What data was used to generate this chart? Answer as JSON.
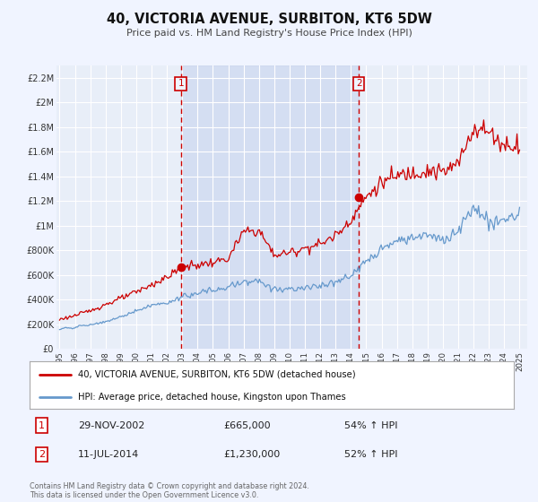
{
  "title": "40, VICTORIA AVENUE, SURBITON, KT6 5DW",
  "subtitle": "Price paid vs. HM Land Registry's House Price Index (HPI)",
  "background_color": "#f0f4ff",
  "plot_bg_color": "#e8eef8",
  "grid_color": "#ffffff",
  "red_line_label": "40, VICTORIA AVENUE, SURBITON, KT6 5DW (detached house)",
  "blue_line_label": "HPI: Average price, detached house, Kingston upon Thames",
  "marker1_date_x": 2002.91,
  "marker1_date_label": "29-NOV-2002",
  "marker1_price": 665000,
  "marker1_price_label": "£665,000",
  "marker1_hpi": "54% ↑ HPI",
  "marker2_date_x": 2014.52,
  "marker2_date_label": "11-JUL-2014",
  "marker2_price": 1230000,
  "marker2_price_label": "£1,230,000",
  "marker2_hpi": "52% ↑ HPI",
  "ylim": [
    0,
    2300000
  ],
  "xlim": [
    1994.8,
    2025.5
  ],
  "yticks": [
    0,
    200000,
    400000,
    600000,
    800000,
    1000000,
    1200000,
    1400000,
    1600000,
    1800000,
    2000000,
    2200000
  ],
  "ytick_labels": [
    "£0",
    "£200K",
    "£400K",
    "£600K",
    "£800K",
    "£1M",
    "£1.2M",
    "£1.4M",
    "£1.6M",
    "£1.8M",
    "£2M",
    "£2.2M"
  ],
  "xticks": [
    1995,
    1996,
    1997,
    1998,
    1999,
    2000,
    2001,
    2002,
    2003,
    2004,
    2005,
    2006,
    2007,
    2008,
    2009,
    2010,
    2011,
    2012,
    2013,
    2014,
    2015,
    2016,
    2017,
    2018,
    2019,
    2020,
    2021,
    2022,
    2023,
    2024,
    2025
  ],
  "footer": "Contains HM Land Registry data © Crown copyright and database right 2024.\nThis data is licensed under the Open Government Licence v3.0.",
  "red_color": "#cc0000",
  "blue_color": "#6699cc",
  "dashed_line_color": "#cc0000",
  "blue_years": [
    1995,
    1996,
    1997,
    1998,
    1999,
    2000,
    2001,
    2002,
    2003,
    2004,
    2005,
    2006,
    2007,
    2008,
    2009,
    2010,
    2011,
    2012,
    2013,
    2014,
    2015,
    2016,
    2017,
    2018,
    2019,
    2020,
    2021,
    2022,
    2023,
    2024,
    2025
  ],
  "blue_values": [
    160000,
    175000,
    195000,
    220000,
    260000,
    310000,
    350000,
    370000,
    420000,
    450000,
    475000,
    500000,
    540000,
    560000,
    480000,
    490000,
    500000,
    510000,
    540000,
    590000,
    700000,
    820000,
    870000,
    900000,
    920000,
    880000,
    960000,
    1150000,
    1020000,
    1050000,
    1100000
  ],
  "red_years": [
    1995,
    1996,
    1997,
    1998,
    1999,
    2000,
    2001,
    2002,
    2003,
    2004,
    2005,
    2006,
    2007,
    2008,
    2009,
    2010,
    2011,
    2012,
    2013,
    2014,
    2015,
    2016,
    2017,
    2018,
    2019,
    2020,
    2021,
    2022,
    2023,
    2024,
    2025
  ],
  "red_values": [
    240000,
    270000,
    310000,
    360000,
    410000,
    460000,
    520000,
    580000,
    665000,
    680000,
    700000,
    730000,
    950000,
    960000,
    760000,
    780000,
    820000,
    850000,
    920000,
    1050000,
    1230000,
    1350000,
    1400000,
    1430000,
    1450000,
    1430000,
    1500000,
    1800000,
    1760000,
    1650000,
    1660000
  ]
}
